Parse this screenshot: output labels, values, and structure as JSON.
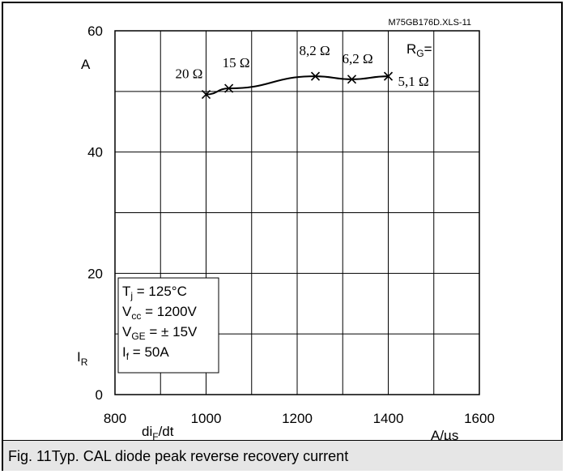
{
  "caption": "Fig. 11Typ. CAL diode peak reverse recovery current",
  "chart_data": {
    "type": "line",
    "code": "M75GB176D.XLS-11",
    "x": [
      1000,
      1050,
      1240,
      1320,
      1400
    ],
    "y": [
      49.5,
      50.5,
      52.5,
      52.0,
      52.5
    ],
    "point_labels": [
      "20 Ω",
      "15 Ω",
      "8,2 Ω",
      "6,2 Ω",
      "5,1 Ω"
    ],
    "xlim": [
      800,
      1600
    ],
    "ylim": [
      0,
      60
    ],
    "x_ticks": [
      800,
      1000,
      1200,
      1400,
      1600
    ],
    "y_ticks": [
      0,
      20,
      40,
      60
    ],
    "x_label": "di",
    "x_label_sub": "F",
    "x_label_tail": "/dt",
    "x_unit": "A/µs",
    "y_label": "I",
    "y_label_sub": "R",
    "y_unit": "A",
    "rg_label": "R",
    "rg_sub": "G",
    "rg_tail": "=",
    "conditions": {
      "tj": "T",
      "tj_sub": "j",
      "tj_val": " = 125°C",
      "vcc": "V",
      "vcc_sub": "cc",
      "vcc_val": " = 1200V",
      "vge": "V",
      "vge_sub": "GE",
      "vge_val": " = ± 15V",
      "if": "I",
      "if_sub": "f",
      "if_val": " = 50A"
    },
    "grid": true
  }
}
